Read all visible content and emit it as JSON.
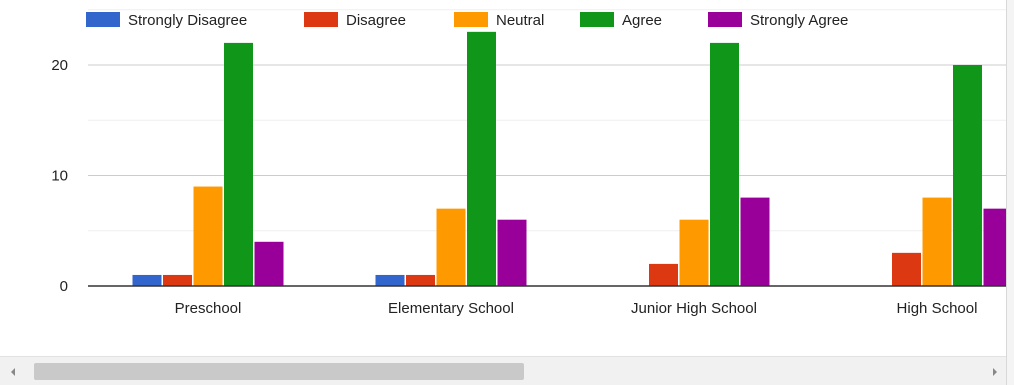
{
  "chart_data": {
    "type": "bar",
    "categories": [
      "Preschool",
      "Elementary School",
      "Junior High School",
      "High School"
    ],
    "series": [
      {
        "name": "Strongly Disagree",
        "color": "#3366cc",
        "values": [
          1,
          1,
          0,
          0
        ]
      },
      {
        "name": "Disagree",
        "color": "#dc3912",
        "values": [
          1,
          1,
          2,
          3
        ]
      },
      {
        "name": "Neutral",
        "color": "#ff9900",
        "values": [
          9,
          7,
          6,
          8
        ]
      },
      {
        "name": "Agree",
        "color": "#109618",
        "values": [
          22,
          23,
          22,
          20
        ]
      },
      {
        "name": "Strongly Agree",
        "color": "#990099",
        "values": [
          4,
          6,
          8,
          7
        ]
      }
    ],
    "ylim": [
      0,
      23
    ],
    "yticks": [
      0,
      10,
      20
    ],
    "grid": true,
    "legend": "top"
  },
  "scrollbar": {
    "left_arrow_icon": "chevron-left-icon",
    "right_arrow_icon": "chevron-right-icon",
    "position": 0.0
  }
}
